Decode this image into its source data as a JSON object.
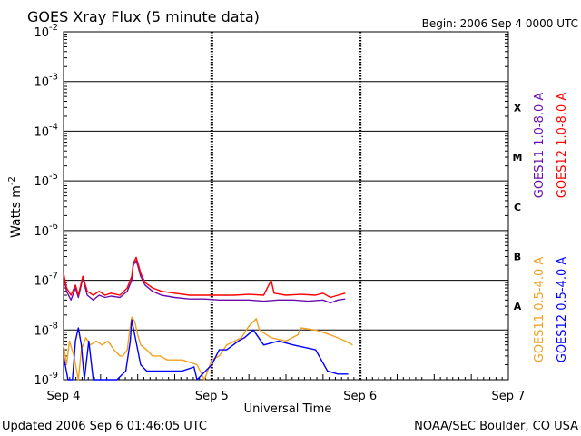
{
  "chart_data": {
    "type": "line",
    "title": "GOES Xray Flux (5 minute data)",
    "begin_label": "Begin:  2006 Sep 4 0000 UTC",
    "ylabel": "Watts m",
    "ylabel_sup": "-2",
    "xlabel": "Universal Time",
    "y_scale": "log",
    "ylim": [
      1e-09,
      0.01
    ],
    "y_tick_labels": [
      {
        "base": "10",
        "exp": "-9",
        "value": 1e-09
      },
      {
        "base": "10",
        "exp": "-8",
        "value": 1e-08
      },
      {
        "base": "10",
        "exp": "-7",
        "value": 1e-07
      },
      {
        "base": "10",
        "exp": "-6",
        "value": 1e-06
      },
      {
        "base": "10",
        "exp": "-5",
        "value": 1e-05
      },
      {
        "base": "10",
        "exp": "-4",
        "value": 0.0001
      },
      {
        "base": "10",
        "exp": "-3",
        "value": 0.001
      },
      {
        "base": "10",
        "exp": "-2",
        "value": 0.01
      }
    ],
    "x_tick_labels": [
      {
        "label": "Sep 4",
        "value": 0
      },
      {
        "label": "Sep 5",
        "value": 1
      },
      {
        "label": "Sep 6",
        "value": 2
      },
      {
        "label": "Sep 7",
        "value": 3
      }
    ],
    "xlim": [
      0,
      3
    ],
    "flare_classes": [
      {
        "label": "A",
        "value": 3e-08
      },
      {
        "label": "B",
        "value": 3e-07
      },
      {
        "label": "C",
        "value": 3e-06
      },
      {
        "label": "M",
        "value": 3e-05
      },
      {
        "label": "X",
        "value": 0.0003
      }
    ],
    "grid": true,
    "series": [
      {
        "name": "GOES11 1.0-8.0 A",
        "color": "#6a0dad",
        "points": [
          [
            0.0,
            1.3e-07
          ],
          [
            0.02,
            6e-08
          ],
          [
            0.05,
            4e-08
          ],
          [
            0.08,
            7e-08
          ],
          [
            0.1,
            4.5e-08
          ],
          [
            0.13,
            1.1e-07
          ],
          [
            0.16,
            5e-08
          ],
          [
            0.2,
            4e-08
          ],
          [
            0.24,
            5e-08
          ],
          [
            0.28,
            4.5e-08
          ],
          [
            0.32,
            4.8e-08
          ],
          [
            0.38,
            4.5e-08
          ],
          [
            0.43,
            6e-08
          ],
          [
            0.46,
            1e-07
          ],
          [
            0.47,
            2e-07
          ],
          [
            0.49,
            2.5e-07
          ],
          [
            0.5,
            2e-07
          ],
          [
            0.52,
            1.2e-07
          ],
          [
            0.55,
            8e-08
          ],
          [
            0.6,
            6e-08
          ],
          [
            0.66,
            5e-08
          ],
          [
            0.75,
            4.5e-08
          ],
          [
            0.85,
            4.2e-08
          ],
          [
            0.95,
            4.2e-08
          ],
          [
            1.05,
            4e-08
          ],
          [
            1.15,
            4e-08
          ],
          [
            1.25,
            4e-08
          ],
          [
            1.35,
            3.8e-08
          ],
          [
            1.45,
            4e-08
          ],
          [
            1.55,
            4e-08
          ],
          [
            1.65,
            3.8e-08
          ],
          [
            1.75,
            4e-08
          ],
          [
            1.8,
            3.5e-08
          ],
          [
            1.85,
            4e-08
          ],
          [
            1.9,
            4.2e-08
          ]
        ]
      },
      {
        "name": "GOES12 1.0-8.0 A",
        "color": "#ff0000",
        "points": [
          [
            0.0,
            1.4e-07
          ],
          [
            0.02,
            7e-08
          ],
          [
            0.05,
            5e-08
          ],
          [
            0.08,
            8e-08
          ],
          [
            0.1,
            5e-08
          ],
          [
            0.13,
            1.2e-07
          ],
          [
            0.16,
            6e-08
          ],
          [
            0.2,
            5e-08
          ],
          [
            0.24,
            6e-08
          ],
          [
            0.28,
            5e-08
          ],
          [
            0.32,
            5.5e-08
          ],
          [
            0.38,
            5e-08
          ],
          [
            0.43,
            7e-08
          ],
          [
            0.46,
            1.2e-07
          ],
          [
            0.47,
            2.2e-07
          ],
          [
            0.49,
            2.9e-07
          ],
          [
            0.5,
            2.3e-07
          ],
          [
            0.52,
            1.4e-07
          ],
          [
            0.55,
            9e-08
          ],
          [
            0.6,
            7e-08
          ],
          [
            0.66,
            6e-08
          ],
          [
            0.75,
            5.5e-08
          ],
          [
            0.85,
            5e-08
          ],
          [
            0.95,
            5e-08
          ],
          [
            1.05,
            5e-08
          ],
          [
            1.15,
            5e-08
          ],
          [
            1.25,
            5.2e-08
          ],
          [
            1.35,
            5e-08
          ],
          [
            1.4,
            1e-07
          ],
          [
            1.42,
            5.5e-08
          ],
          [
            1.5,
            5e-08
          ],
          [
            1.6,
            5.2e-08
          ],
          [
            1.7,
            5e-08
          ],
          [
            1.75,
            5.5e-08
          ],
          [
            1.8,
            4.5e-08
          ],
          [
            1.85,
            5e-08
          ],
          [
            1.9,
            5.5e-08
          ]
        ]
      },
      {
        "name": "GOES11 0.5-4.0 A",
        "color": "#f0a020",
        "points": [
          [
            0.0,
            5e-09
          ],
          [
            0.02,
            2e-09
          ],
          [
            0.04,
            6e-09
          ],
          [
            0.07,
            3e-09
          ],
          [
            0.1,
            1e-09
          ],
          [
            0.12,
            4e-09
          ],
          [
            0.15,
            7e-09
          ],
          [
            0.18,
            5e-09
          ],
          [
            0.22,
            6e-09
          ],
          [
            0.26,
            5e-09
          ],
          [
            0.3,
            6e-09
          ],
          [
            0.34,
            4e-09
          ],
          [
            0.38,
            3e-09
          ],
          [
            0.4,
            3e-09
          ],
          [
            0.43,
            4e-09
          ],
          [
            0.45,
            1.2e-08
          ],
          [
            0.46,
            1.8e-08
          ],
          [
            0.48,
            1.5e-08
          ],
          [
            0.5,
            8e-09
          ],
          [
            0.52,
            5e-09
          ],
          [
            0.56,
            4e-09
          ],
          [
            0.6,
            3e-09
          ],
          [
            0.65,
            3e-09
          ],
          [
            0.7,
            2.5e-09
          ],
          [
            0.8,
            2.5e-09
          ],
          [
            0.9,
            2e-09
          ],
          [
            0.95,
            1e-09
          ],
          [
            1.0,
            2.5e-09
          ],
          [
            1.05,
            3e-09
          ],
          [
            1.1,
            5e-09
          ],
          [
            1.2,
            7e-09
          ],
          [
            1.25,
            1.2e-08
          ],
          [
            1.3,
            1.7e-08
          ],
          [
            1.32,
            1e-08
          ],
          [
            1.4,
            7e-09
          ],
          [
            1.5,
            6e-09
          ],
          [
            1.58,
            8e-09
          ],
          [
            1.6,
            1.1e-08
          ],
          [
            1.7,
            1e-08
          ],
          [
            1.8,
            8e-09
          ],
          [
            1.9,
            6e-09
          ],
          [
            1.95,
            5e-09
          ]
        ]
      },
      {
        "name": "GOES12 0.5-4.0 A",
        "color": "#0000ff",
        "points": [
          [
            0.0,
            3e-09
          ],
          [
            0.03,
            1e-09
          ],
          [
            0.06,
            1e-09
          ],
          [
            0.08,
            6e-09
          ],
          [
            0.1,
            1.1e-08
          ],
          [
            0.12,
            5e-09
          ],
          [
            0.14,
            1e-09
          ],
          [
            0.17,
            6e-09
          ],
          [
            0.2,
            1e-09
          ],
          [
            0.25,
            1e-09
          ],
          [
            0.3,
            1e-09
          ],
          [
            0.36,
            1e-09
          ],
          [
            0.42,
            1.5e-09
          ],
          [
            0.45,
            6e-09
          ],
          [
            0.46,
            1.6e-08
          ],
          [
            0.48,
            8e-09
          ],
          [
            0.5,
            4e-09
          ],
          [
            0.52,
            2e-09
          ],
          [
            0.56,
            1.5e-09
          ],
          [
            0.6,
            1.5e-09
          ],
          [
            0.7,
            1.5e-09
          ],
          [
            0.8,
            1.5e-09
          ],
          [
            0.88,
            1.8e-09
          ],
          [
            0.9,
            1e-09
          ],
          [
            1.0,
            2e-09
          ],
          [
            1.05,
            4e-09
          ],
          [
            1.1,
            4e-09
          ],
          [
            1.18,
            6e-09
          ],
          [
            1.22,
            7e-09
          ],
          [
            1.28,
            1e-08
          ],
          [
            1.35,
            5e-09
          ],
          [
            1.45,
            6e-09
          ],
          [
            1.55,
            5e-09
          ],
          [
            1.7,
            4e-09
          ],
          [
            1.78,
            1.5e-09
          ],
          [
            1.85,
            1.3e-09
          ],
          [
            1.92,
            1.3e-09
          ]
        ]
      }
    ]
  },
  "footer": {
    "updated": "Updated 2006 Sep  6 01:46:05 UTC",
    "credit": "NOAA/SEC Boulder, CO USA"
  }
}
